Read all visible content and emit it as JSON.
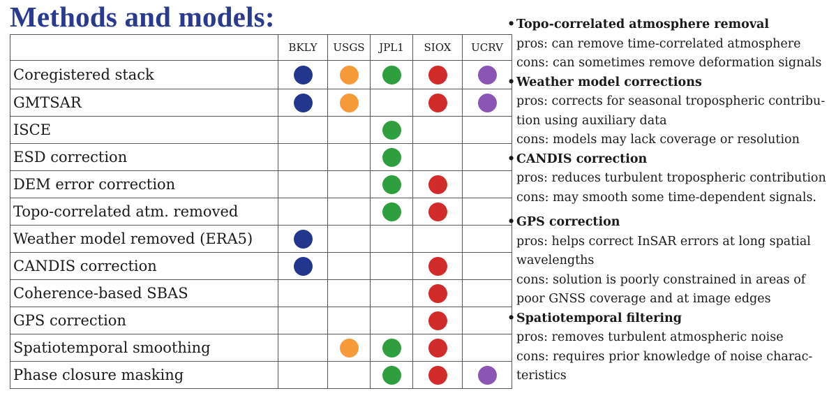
{
  "title": "Methods and models:",
  "table": {
    "columns": [
      "BKLY",
      "USGS",
      "JPL1",
      "SIOX",
      "UCRV"
    ],
    "colors": {
      "BKLY": "#21368c",
      "USGS": "#f79a3a",
      "JPL1": "#2e9e3e",
      "SIOX": "#d12b2b",
      "UCRV": "#8a55b3"
    },
    "rows": [
      {
        "label": "Coregistered stack",
        "marks": [
          true,
          true,
          true,
          true,
          true
        ]
      },
      {
        "label": "GMTSAR",
        "marks": [
          true,
          true,
          false,
          true,
          true
        ]
      },
      {
        "label": "ISCE",
        "marks": [
          false,
          false,
          true,
          false,
          false
        ]
      },
      {
        "label": "ESD correction",
        "marks": [
          false,
          false,
          true,
          false,
          false
        ]
      },
      {
        "label": "DEM error correction",
        "marks": [
          false,
          false,
          true,
          true,
          false
        ]
      },
      {
        "label": "Topo-correlated atm. removed",
        "marks": [
          false,
          false,
          true,
          true,
          false
        ]
      },
      {
        "label": "Weather model removed (ERA5)",
        "marks": [
          true,
          false,
          false,
          false,
          false
        ]
      },
      {
        "label": "CANDIS correction",
        "marks": [
          true,
          false,
          false,
          true,
          false
        ]
      },
      {
        "label": "Coherence-based SBAS",
        "marks": [
          false,
          false,
          false,
          true,
          false
        ]
      },
      {
        "label": "GPS correction",
        "marks": [
          false,
          false,
          false,
          true,
          false
        ]
      },
      {
        "label": "Spatiotemporal smoothing",
        "marks": [
          false,
          true,
          true,
          true,
          false
        ]
      },
      {
        "label": "Phase closure masking",
        "marks": [
          false,
          false,
          true,
          true,
          true
        ]
      }
    ]
  },
  "notes": [
    {
      "title": "Topo-correlated atmosphere removal",
      "lines": [
        "pros: can remove time-correlated atmosphere",
        "cons: can sometimes remove deformation signals"
      ]
    },
    {
      "title": "Weather model corrections",
      "lines": [
        "pros: corrects for seasonal tropospheric contribu-",
        "tion using auxiliary data",
        "cons: models may lack coverage or resolution"
      ]
    },
    {
      "title": "CANDIS correction",
      "lines": [
        "pros: reduces turbulent tropospheric contribution",
        "cons: may smooth some time-dependent signals."
      ]
    },
    {
      "title": "GPS correction",
      "lines": [
        "pros: helps correct InSAR errors at long spatial",
        "wavelengths",
        "cons: solution is poorly constrained in areas of",
        "poor GNSS coverage and at image edges"
      ]
    },
    {
      "title": "Spatiotemporal filtering",
      "lines": [
        "pros: removes turbulent atmospheric noise",
        "cons: requires prior knowledge of noise charac-",
        "teristics"
      ]
    }
  ]
}
